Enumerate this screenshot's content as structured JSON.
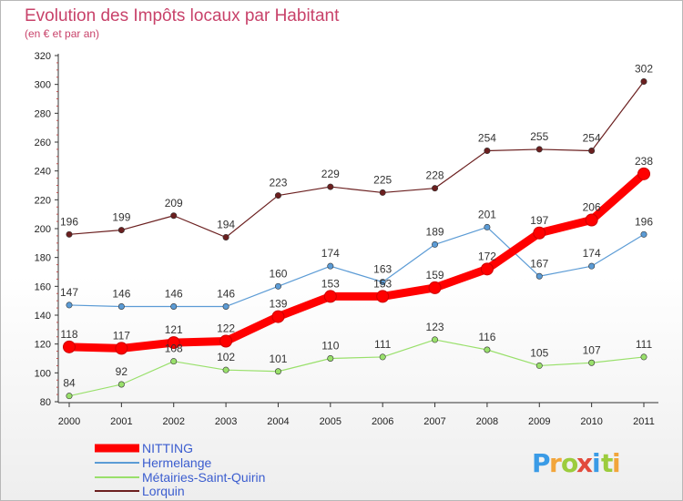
{
  "chart_data": {
    "type": "line",
    "title": "Evolution des Impôts locaux par Habitant",
    "subtitle": "(en € et par an)",
    "xlabel": "",
    "ylabel": "",
    "categories": [
      "2000",
      "2001",
      "2002",
      "2003",
      "2004",
      "2005",
      "2006",
      "2007",
      "2008",
      "2009",
      "2010",
      "2011"
    ],
    "ylim": [
      80,
      320
    ],
    "yticks": [
      80,
      100,
      120,
      140,
      160,
      180,
      200,
      220,
      240,
      260,
      280,
      300,
      320
    ],
    "grid": "off",
    "legend_position": "bottom-left",
    "series": [
      {
        "name": "NITTING",
        "color": "#ff0000",
        "values": [
          118,
          117,
          121,
          122,
          139,
          153,
          153,
          159,
          172,
          197,
          206,
          238
        ]
      },
      {
        "name": "Hermelange",
        "color": "#5b9bd5",
        "values": [
          147,
          146,
          146,
          146,
          160,
          174,
          163,
          189,
          201,
          167,
          174,
          196
        ]
      },
      {
        "name": "Métairies-Saint-Quirin",
        "color": "#99e06b",
        "values": [
          84,
          92,
          108,
          102,
          101,
          110,
          111,
          123,
          116,
          105,
          107,
          111
        ]
      },
      {
        "name": "Lorquin",
        "color": "#6b1f1f",
        "values": [
          196,
          199,
          209,
          194,
          223,
          229,
          225,
          228,
          254,
          255,
          254,
          302
        ]
      }
    ]
  },
  "logo": {
    "letters": [
      "P",
      "r",
      "o",
      "x",
      "i",
      "t",
      "i"
    ],
    "colors": [
      "#3a9be6",
      "#f2a53a",
      "#9ccc3d",
      "#e24a3b",
      "#3a9be6",
      "#9ccc3d",
      "#f2a53a"
    ]
  }
}
